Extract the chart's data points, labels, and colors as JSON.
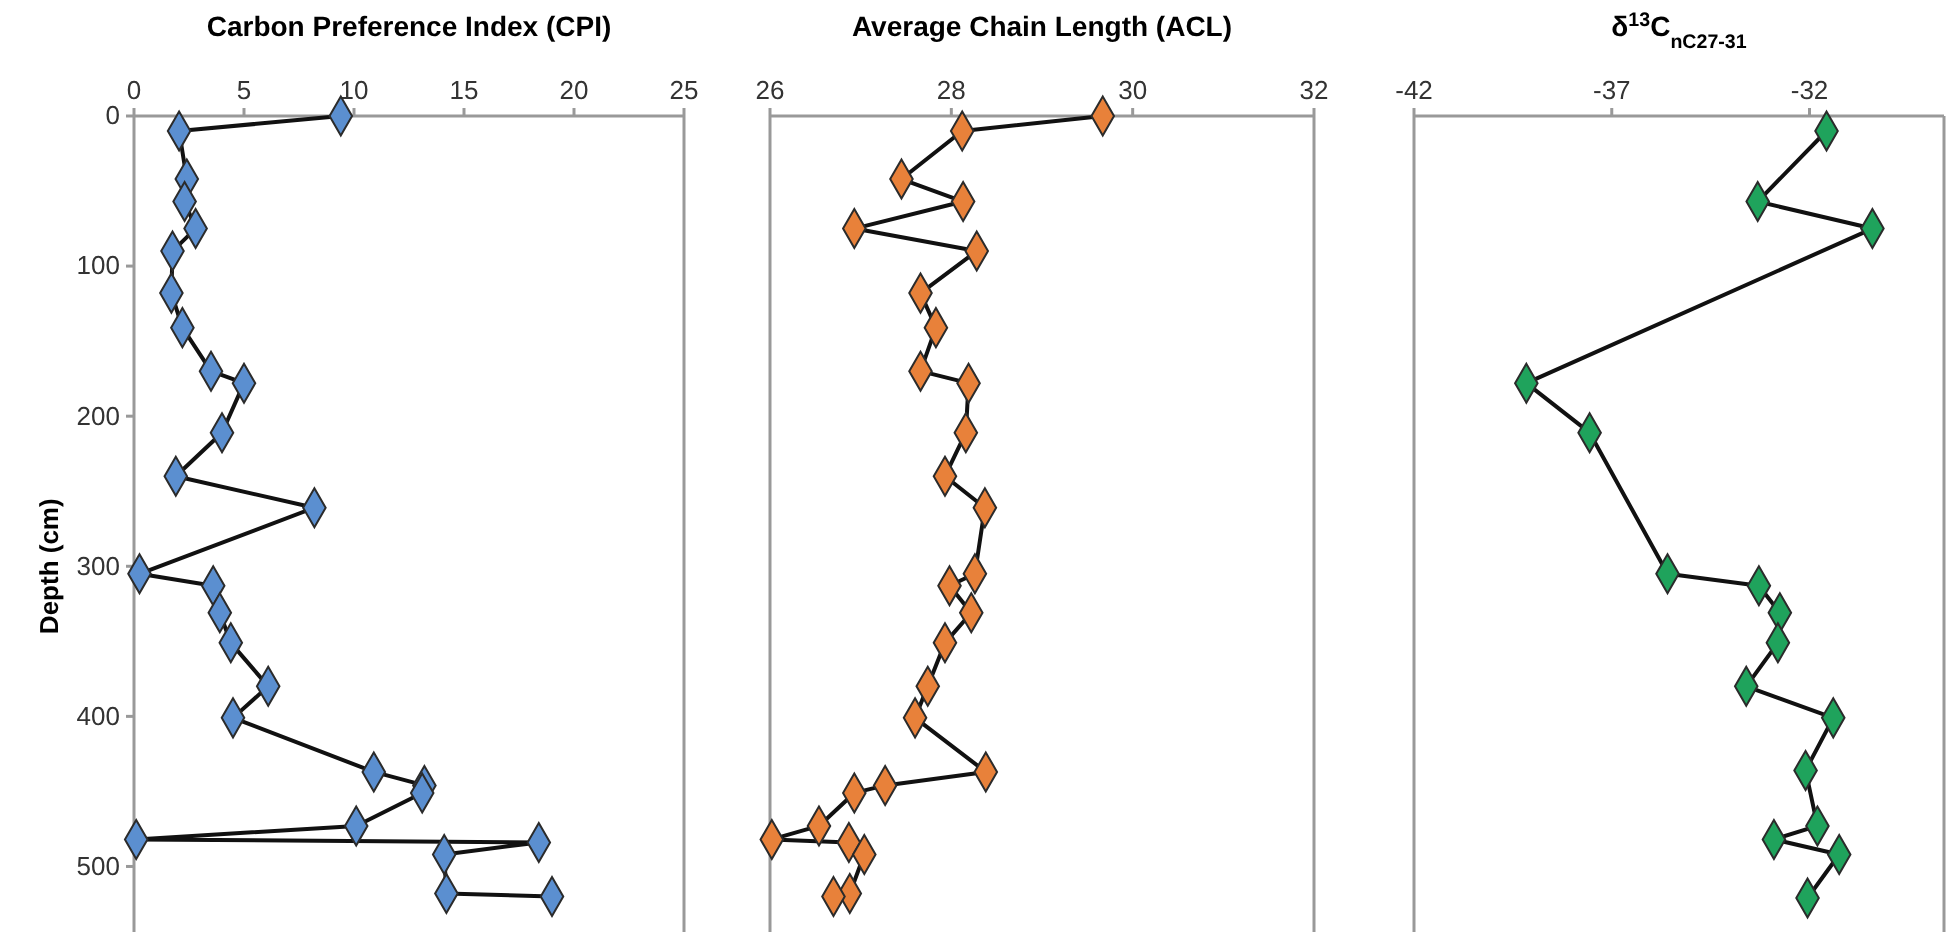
{
  "chart_data": [
    {
      "type": "line",
      "title": "Carbon Preference Index (CPI)",
      "ylabel": "Depth (cm)",
      "xlim": [
        0,
        25
      ],
      "xticks": [
        0,
        5,
        10,
        15,
        20,
        25
      ],
      "ylim": [
        545,
        0
      ],
      "yticks": [
        0,
        100,
        200,
        300,
        400,
        500
      ],
      "marker": "diamond",
      "grid": false,
      "series": [
        {
          "color": "#5b8fd0",
          "x": [
            9.4,
            2.05,
            2.4,
            2.3,
            2.8,
            1.75,
            1.7,
            2.2,
            3.5,
            5.0,
            4.0,
            1.9,
            8.2,
            0.25,
            3.6,
            3.9,
            4.4,
            6.1,
            4.5,
            10.9,
            13.2,
            13.1,
            10.1,
            0.1,
            18.4,
            14.1,
            14.2,
            19.0
          ],
          "values": [
            0,
            10,
            42,
            57,
            75,
            90,
            118,
            141,
            170,
            178,
            211,
            240,
            261,
            305,
            313,
            331,
            351,
            380,
            401,
            437,
            446,
            451,
            473,
            482,
            484,
            492,
            518,
            520
          ]
        }
      ]
    },
    {
      "type": "line",
      "title": "Average Chain Length (ACL)",
      "xlim": [
        26,
        32
      ],
      "xticks": [
        26,
        28,
        30,
        32
      ],
      "ylim": [
        545,
        0
      ],
      "yticks": [
        0,
        100,
        200,
        300,
        400,
        500
      ],
      "tick_labels": "x",
      "marker": "diamond",
      "grid": false,
      "series": [
        {
          "color": "#e8813a",
          "x": [
            29.67,
            28.12,
            27.45,
            28.13,
            26.93,
            28.28,
            27.66,
            27.83,
            27.66,
            28.19,
            28.16,
            27.93,
            28.37,
            28.26,
            27.98,
            28.22,
            27.93,
            27.74,
            27.6,
            28.38,
            27.27,
            26.93,
            26.54,
            26.02,
            26.87,
            27.04,
            26.88,
            26.7
          ],
          "values": [
            0,
            10,
            42,
            57,
            75,
            90,
            118,
            141,
            170,
            178,
            211,
            240,
            261,
            305,
            313,
            331,
            351,
            380,
            401,
            437,
            446,
            451,
            473,
            482,
            484,
            492,
            518,
            520
          ]
        }
      ]
    },
    {
      "type": "line",
      "title": "δ$^{13}$C$_{nC27-31}$",
      "xlim": [
        -42,
        -28.6
      ],
      "xticks": [
        -42,
        -37,
        -32
      ],
      "ylim": [
        545,
        0
      ],
      "yticks": [
        0,
        100,
        200,
        300,
        400,
        500
      ],
      "tick_labels": "x",
      "marker": "diamond",
      "grid": false,
      "series": [
        {
          "color": "#1fa35c",
          "x": [
            -31.57,
            -33.31,
            -30.41,
            -39.16,
            -37.56,
            -35.59,
            -33.28,
            -32.75,
            -32.8,
            -33.6,
            -31.4,
            -32.1,
            -31.8,
            -32.9,
            -31.25,
            -32.05
          ],
          "values": [
            10,
            57,
            75,
            178,
            211,
            305,
            313,
            331,
            351,
            380,
            401,
            436,
            473,
            482,
            492,
            521
          ]
        }
      ]
    }
  ]
}
